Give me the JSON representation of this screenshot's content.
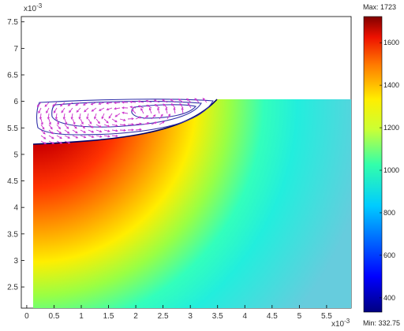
{
  "chart_data": {
    "type": "heatmap",
    "title": "",
    "xlabel": "",
    "ylabel": "",
    "x_multiplier": "x10",
    "x_multiplier_exp": "-3",
    "y_multiplier": "x10",
    "y_multiplier_exp": "-3",
    "xlim": [
      -0.1,
      5.95
    ],
    "ylim": [
      2.1,
      7.6
    ],
    "x_ticks": [
      {
        "value": 0,
        "label": "0"
      },
      {
        "value": 0.5,
        "label": "0.5"
      },
      {
        "value": 1,
        "label": "1"
      },
      {
        "value": 1.5,
        "label": "1.5"
      },
      {
        "value": 2,
        "label": "2"
      },
      {
        "value": 2.5,
        "label": "2.5"
      },
      {
        "value": 3,
        "label": "3"
      },
      {
        "value": 3.5,
        "label": "3.5"
      },
      {
        "value": 4,
        "label": "4"
      },
      {
        "value": 4.5,
        "label": "4.5"
      },
      {
        "value": 5,
        "label": "5"
      },
      {
        "value": 5.5,
        "label": "5.5"
      }
    ],
    "y_ticks": [
      {
        "value": 2.5,
        "label": "2.5"
      },
      {
        "value": 3,
        "label": "3"
      },
      {
        "value": 3.5,
        "label": "3.5"
      },
      {
        "value": 4,
        "label": "4"
      },
      {
        "value": 4.5,
        "label": "4.5"
      },
      {
        "value": 5,
        "label": "5"
      },
      {
        "value": 5.5,
        "label": "5.5"
      },
      {
        "value": 6,
        "label": "6"
      },
      {
        "value": 6.5,
        "label": "6.5"
      },
      {
        "value": 7,
        "label": "7"
      },
      {
        "value": 7.5,
        "label": "7.5"
      }
    ],
    "domain": {
      "x_min": 0,
      "x_max": 5.95,
      "y_min": 2.1,
      "y_max": 6.02,
      "melt_pool_x_extent": 3.55,
      "melt_pool_bottom_y": 5.15
    },
    "colorbar": {
      "min": 332.75,
      "max": 1723,
      "max_label": "Max: 1723",
      "min_label": "Min: 332.75",
      "ticks": [
        {
          "value": 400,
          "label": "400"
        },
        {
          "value": 600,
          "label": "600"
        },
        {
          "value": 800,
          "label": "800"
        },
        {
          "value": 1000,
          "label": "1000"
        },
        {
          "value": 1200,
          "label": "1200"
        },
        {
          "value": 1400,
          "label": "1400"
        },
        {
          "value": 1600,
          "label": "1600"
        }
      ],
      "colormap": "jet"
    },
    "grid": false,
    "legend": "colorbar-right"
  },
  "colors": {
    "flow_arrows": "#cc33cc",
    "streamlines": "#3333aa",
    "axis": "#000000"
  }
}
